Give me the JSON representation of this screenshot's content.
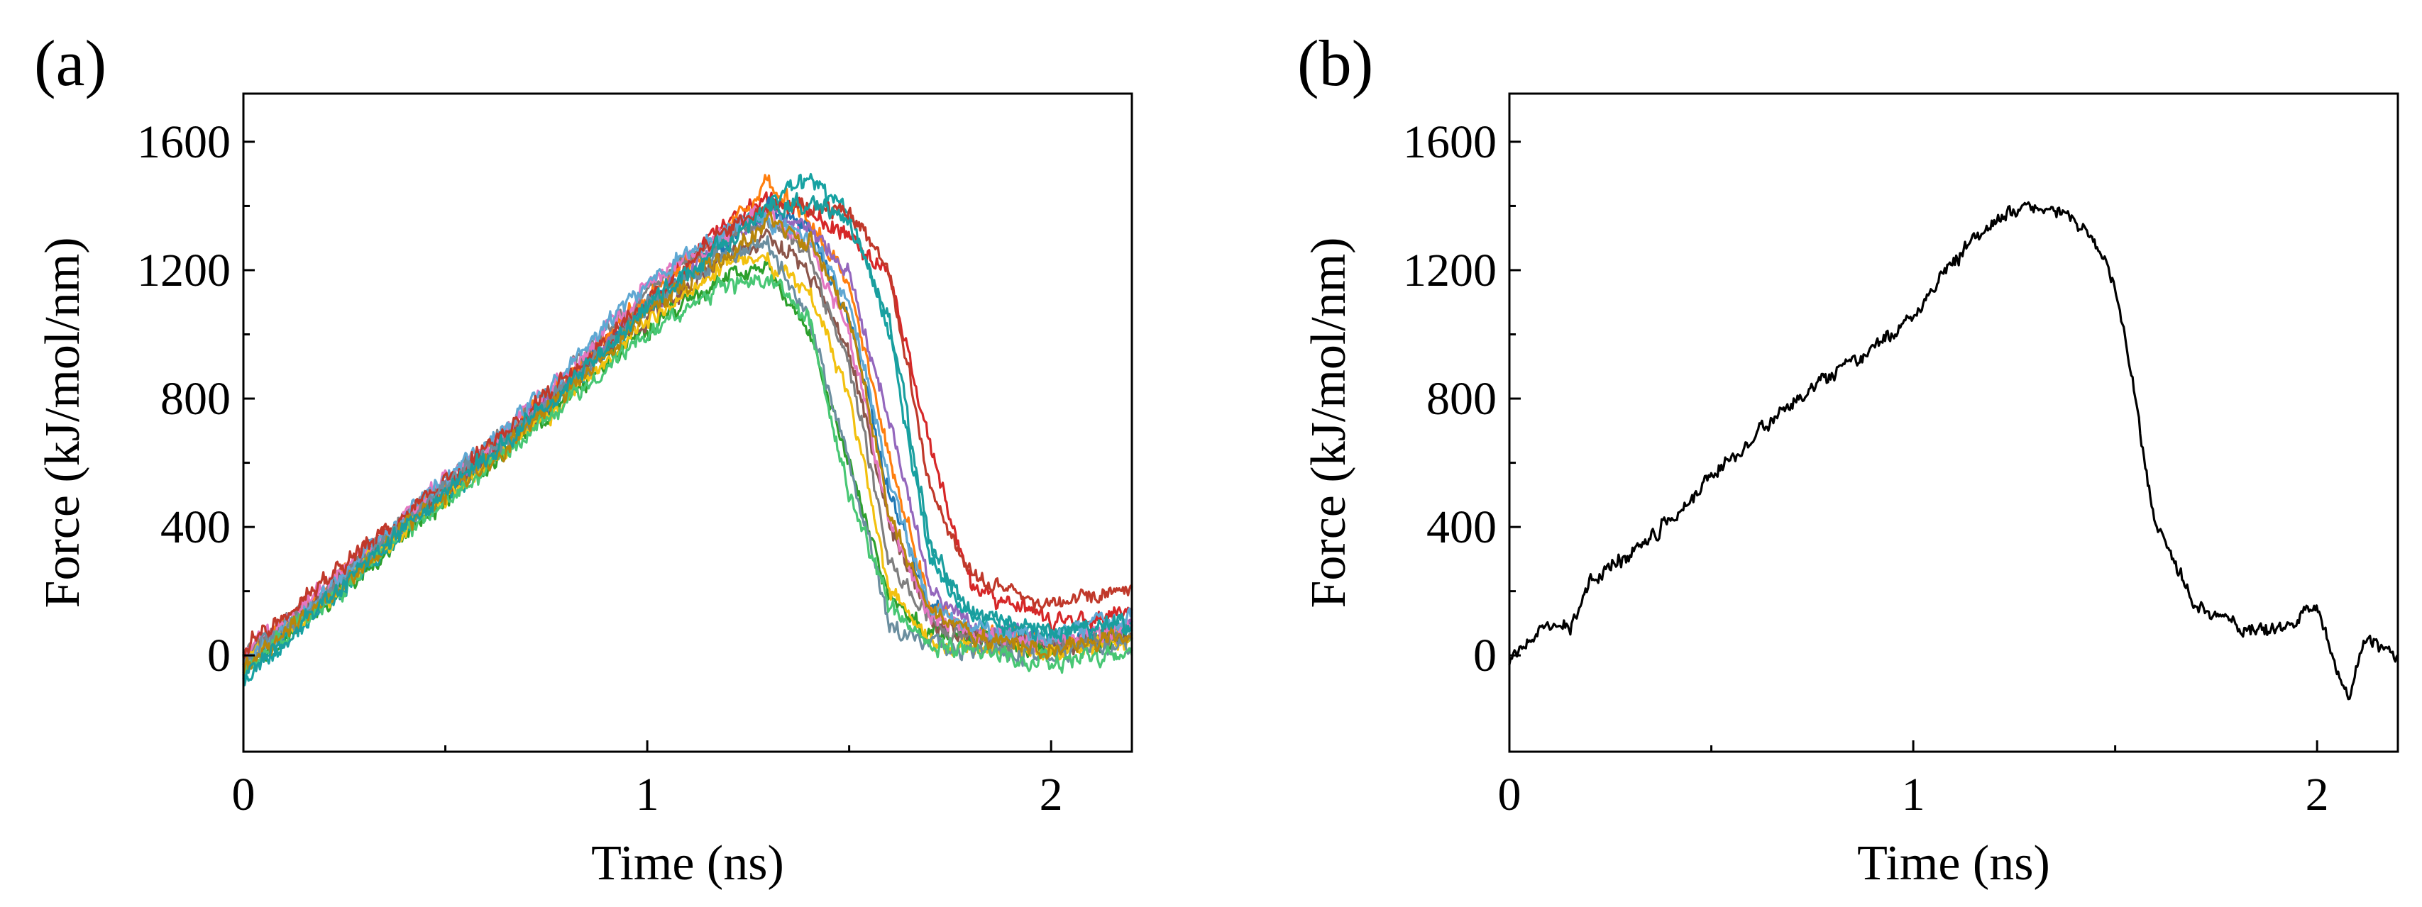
{
  "colors": {
    "panel_a_series": [
      "#d62728",
      "#1f77b4",
      "#ff7f0e",
      "#2ca02c",
      "#9467bd",
      "#8c564b",
      "#17a2a2",
      "#f2c10f",
      "#7f7f7f",
      "#e377c2",
      "#5fa8d3",
      "#c0392b",
      "#6b8e9f",
      "#48c774",
      "#b8860b",
      "#1a9e9e"
    ],
    "panel_b_series": "#000000"
  },
  "chart_data": [
    {
      "type": "line",
      "panel_label": "(a)",
      "title": "",
      "xlabel": "Time (ns)",
      "ylabel": "Force (kJ/mol/nm)",
      "xlim": [
        0,
        2.2
      ],
      "ylim": [
        -300,
        1750
      ],
      "xticks": [
        0,
        1,
        2
      ],
      "xtick_labels": [
        "0",
        "1",
        "2"
      ],
      "yticks": [
        0,
        400,
        800,
        1200,
        1600
      ],
      "ytick_labels": [
        "0",
        "400",
        "800",
        "1200",
        "1600"
      ],
      "grid": false,
      "legend": "none",
      "series_note_count": 16,
      "series": [
        {
          "x": [
            0,
            0.2,
            0.4,
            0.6,
            0.8,
            1.0,
            1.2,
            1.3,
            1.4,
            1.5,
            1.6,
            1.7,
            1.8,
            2.0,
            2.2
          ],
          "y": [
            -20,
            200,
            430,
            620,
            850,
            1100,
            1350,
            1420,
            1380,
            1300,
            1180,
            650,
            220,
            100,
            140
          ]
        },
        {
          "x": [
            0,
            0.2,
            0.4,
            0.6,
            0.8,
            1.0,
            1.2,
            1.3,
            1.4,
            1.5,
            1.6,
            1.7,
            1.8,
            2.0,
            2.2
          ],
          "y": [
            -40,
            170,
            400,
            610,
            840,
            1090,
            1280,
            1400,
            1330,
            1050,
            500,
            150,
            70,
            40,
            70
          ]
        },
        {
          "x": [
            0,
            0.2,
            0.4,
            0.6,
            0.8,
            1.0,
            1.2,
            1.3,
            1.4,
            1.5,
            1.6,
            1.7,
            1.8,
            2.0,
            2.2
          ],
          "y": [
            -10,
            190,
            420,
            630,
            860,
            1120,
            1330,
            1480,
            1360,
            1150,
            620,
            160,
            80,
            30,
            80
          ]
        },
        {
          "x": [
            0,
            0.2,
            0.4,
            0.6,
            0.8,
            1.0,
            1.2,
            1.3,
            1.4,
            1.5,
            1.6,
            1.7,
            1.8,
            2.0,
            2.2
          ],
          "y": [
            -60,
            150,
            380,
            590,
            800,
            1020,
            1180,
            1200,
            1000,
            600,
            180,
            60,
            50,
            20,
            50
          ]
        },
        {
          "x": [
            0,
            0.2,
            0.4,
            0.6,
            0.8,
            1.0,
            1.2,
            1.3,
            1.4,
            1.5,
            1.6,
            1.7,
            1.8,
            2.0,
            2.2
          ],
          "y": [
            -30,
            180,
            410,
            620,
            850,
            1080,
            1300,
            1380,
            1340,
            1180,
            750,
            200,
            90,
            40,
            80
          ]
        },
        {
          "x": [
            0,
            0.2,
            0.4,
            0.6,
            0.8,
            1.0,
            1.2,
            1.3,
            1.4,
            1.5,
            1.6,
            1.7,
            1.8,
            2.0,
            2.2
          ],
          "y": [
            -20,
            190,
            410,
            610,
            830,
            1060,
            1250,
            1300,
            1200,
            950,
            400,
            120,
            60,
            30,
            60
          ]
        },
        {
          "x": [
            0,
            0.2,
            0.4,
            0.6,
            0.8,
            1.0,
            1.2,
            1.3,
            1.4,
            1.5,
            1.6,
            1.7,
            1.8,
            2.0,
            2.2
          ],
          "y": [
            -80,
            150,
            390,
            600,
            830,
            1080,
            1300,
            1400,
            1490,
            1380,
            1000,
            300,
            120,
            60,
            100
          ]
        },
        {
          "x": [
            0,
            0.2,
            0.4,
            0.6,
            0.8,
            1.0,
            1.2,
            1.3,
            1.4,
            1.5,
            1.6,
            1.7,
            1.8,
            2.0,
            2.2
          ],
          "y": [
            -20,
            170,
            390,
            590,
            800,
            1050,
            1220,
            1230,
            1150,
            800,
            200,
            50,
            30,
            10,
            40
          ]
        },
        {
          "x": [
            0,
            0.2,
            0.4,
            0.6,
            0.8,
            1.0,
            1.2,
            1.3,
            1.4,
            1.5,
            1.6,
            1.7,
            1.8,
            2.0,
            2.2
          ],
          "y": [
            -10,
            200,
            430,
            640,
            870,
            1140,
            1310,
            1350,
            1250,
            900,
            300,
            100,
            60,
            30,
            60
          ]
        },
        {
          "x": [
            0,
            0.2,
            0.4,
            0.6,
            0.8,
            1.0,
            1.2,
            1.3,
            1.4,
            1.5,
            1.6,
            1.7,
            1.8,
            2.0,
            2.2
          ],
          "y": [
            0,
            210,
            440,
            650,
            880,
            1150,
            1320,
            1380,
            1280,
            1000,
            420,
            130,
            70,
            40,
            90
          ]
        },
        {
          "x": [
            0,
            0.2,
            0.4,
            0.6,
            0.8,
            1.0,
            1.2,
            1.3,
            1.4,
            1.5,
            1.6,
            1.7,
            1.8,
            2.0,
            2.2
          ],
          "y": [
            -30,
            180,
            440,
            660,
            890,
            1160,
            1330,
            1360,
            1300,
            1100,
            550,
            150,
            80,
            60,
            120
          ]
        },
        {
          "x": [
            0,
            0.2,
            0.4,
            0.6,
            0.8,
            1.0,
            1.2,
            1.3,
            1.4,
            1.5,
            1.6,
            1.7,
            1.8,
            2.0,
            2.2
          ],
          "y": [
            20,
            230,
            440,
            640,
            860,
            1100,
            1320,
            1400,
            1410,
            1380,
            1200,
            520,
            250,
            150,
            220
          ]
        },
        {
          "x": [
            0,
            0.2,
            0.4,
            0.6,
            0.8,
            1.0,
            1.2,
            1.3,
            1.4,
            1.5,
            1.6,
            1.7,
            1.8,
            2.0,
            2.2
          ],
          "y": [
            -20,
            180,
            410,
            620,
            840,
            1080,
            1250,
            1280,
            1050,
            600,
            100,
            30,
            20,
            0,
            30
          ]
        },
        {
          "x": [
            0,
            0.2,
            0.4,
            0.6,
            0.8,
            1.0,
            1.2,
            1.3,
            1.4,
            1.5,
            1.6,
            1.7,
            1.8,
            2.0,
            2.2
          ],
          "y": [
            -50,
            160,
            380,
            580,
            790,
            1000,
            1150,
            1180,
            1050,
            500,
            150,
            40,
            10,
            -20,
            10
          ]
        },
        {
          "x": [
            0,
            0.2,
            0.4,
            0.6,
            0.8,
            1.0,
            1.2,
            1.3,
            1.4,
            1.5,
            1.6,
            1.7,
            1.8,
            2.0,
            2.2
          ],
          "y": [
            -40,
            170,
            400,
            600,
            820,
            1060,
            1260,
            1350,
            1300,
            1050,
            450,
            140,
            60,
            20,
            60
          ]
        },
        {
          "x": [
            0,
            0.2,
            0.4,
            0.6,
            0.8,
            1.0,
            1.2,
            1.3,
            1.4,
            1.5,
            1.6,
            1.7,
            1.8,
            2.0,
            2.2
          ],
          "y": [
            -70,
            160,
            400,
            610,
            840,
            1090,
            1290,
            1390,
            1420,
            1350,
            1050,
            350,
            130,
            70,
            110
          ]
        }
      ]
    },
    {
      "type": "line",
      "panel_label": "(b)",
      "title": "",
      "xlabel": "Time (ns)",
      "ylabel": "Force (kJ/mol/nm)",
      "xlim": [
        0,
        2.2
      ],
      "ylim": [
        -300,
        1750
      ],
      "xticks": [
        0,
        1,
        2
      ],
      "xtick_labels": [
        "0",
        "1",
        "2"
      ],
      "yticks": [
        0,
        400,
        800,
        1200,
        1600
      ],
      "ytick_labels": [
        "0",
        "400",
        "800",
        "1200",
        "1600"
      ],
      "grid": false,
      "legend": "none",
      "series": [
        {
          "x": [
            0,
            0.05,
            0.1,
            0.15,
            0.2,
            0.25,
            0.3,
            0.4,
            0.5,
            0.6,
            0.7,
            0.8,
            0.9,
            1.0,
            1.05,
            1.1,
            1.15,
            1.2,
            1.25,
            1.3,
            1.35,
            1.4,
            1.45,
            1.5,
            1.53,
            1.56,
            1.6,
            1.65,
            1.7,
            1.8,
            1.9,
            2.0,
            2.03,
            2.08,
            2.12,
            2.2
          ],
          "y": [
            -30,
            60,
            80,
            90,
            220,
            280,
            320,
            430,
            560,
            680,
            780,
            870,
            950,
            1060,
            1150,
            1230,
            1300,
            1350,
            1380,
            1410,
            1390,
            1360,
            1280,
            1150,
            950,
            700,
            400,
            280,
            150,
            100,
            70,
            150,
            30,
            -140,
            60,
            -10
          ]
        }
      ]
    }
  ]
}
